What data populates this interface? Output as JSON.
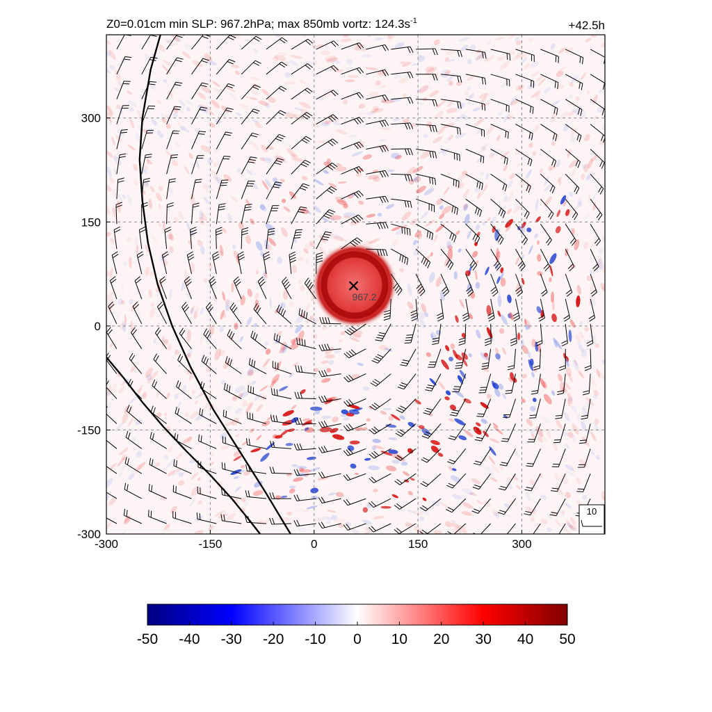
{
  "chart_data": {
    "type": "heatmap",
    "title": "Z0=0.01cm  min SLP: 967.2hPa; max 850mb vortz: 124.3s",
    "title_superscript": "-1",
    "time_label": "+42.5h",
    "xlim": [
      -300,
      420
    ],
    "ylim": [
      -300,
      420
    ],
    "x_ticks": [
      -300,
      -150,
      0,
      150,
      300
    ],
    "y_ticks": [
      -300,
      -150,
      0,
      150,
      300
    ],
    "x_tick_labels": [
      "-300",
      "-150",
      "0",
      "150",
      "300"
    ],
    "y_tick_labels": [
      "-300",
      "-150",
      "0",
      "150",
      "300"
    ],
    "grid": "dashed at 150 intervals",
    "min_slp_center": {
      "x": 57,
      "y": 58,
      "label": "967.2"
    },
    "colorbar": {
      "min": -50,
      "max": 50,
      "ticks": [
        -50,
        -40,
        -30,
        -20,
        -10,
        0,
        10,
        20,
        30,
        40,
        50
      ],
      "tick_labels": [
        "-50",
        "-40",
        "-30",
        "-20",
        "-10",
        "0",
        "10",
        "20",
        "30",
        "40",
        "50"
      ],
      "colors": [
        "#000080",
        "#0000ff",
        "#ffffff",
        "#ff0000",
        "#800000"
      ]
    },
    "barb_reference_label": "10",
    "contour_lines": [
      {
        "name": "",
        "points": [
          [
            -222,
            420
          ],
          [
            -236,
            370
          ],
          [
            -248,
            300
          ],
          [
            -252,
            240
          ],
          [
            -248,
            180
          ],
          [
            -240,
            120
          ],
          [
            -226,
            60
          ],
          [
            -205,
            0
          ],
          [
            -178,
            -60
          ],
          [
            -146,
            -120
          ],
          [
            -108,
            -180
          ],
          [
            -70,
            -240
          ],
          [
            -34,
            -300
          ]
        ]
      },
      {
        "name": "",
        "points": [
          [
            -300,
            -45
          ],
          [
            -275,
            -75
          ],
          [
            -248,
            -110
          ],
          [
            -218,
            -145
          ],
          [
            -185,
            -180
          ],
          [
            -150,
            -215
          ],
          [
            -118,
            -250
          ],
          [
            -92,
            -282
          ],
          [
            -78,
            -300
          ]
        ]
      }
    ]
  }
}
